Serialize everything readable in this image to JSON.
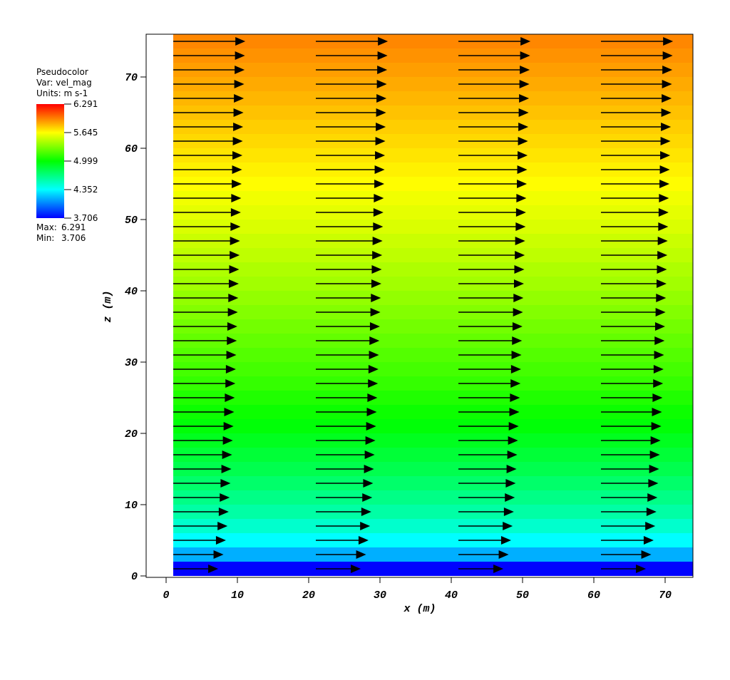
{
  "chart_data": {
    "type": "vector_field",
    "xlabel": "x (m)",
    "ylabel": "z (m)",
    "xlim": [
      -2.8,
      73.9
    ],
    "ylim": [
      -0.2,
      76
    ],
    "xticks": [
      0,
      10,
      20,
      30,
      40,
      50,
      60,
      70
    ],
    "yticks": [
      0,
      10,
      20,
      30,
      40,
      50,
      60,
      70
    ],
    "columns": [
      1,
      21,
      41,
      61
    ],
    "z": [
      1,
      3,
      5,
      7,
      9,
      11,
      13,
      15,
      17,
      19,
      21,
      23,
      25,
      27,
      29,
      31,
      33,
      35,
      37,
      39,
      41,
      43,
      45,
      47,
      49,
      51,
      53,
      55,
      57,
      59,
      61,
      63,
      65,
      67,
      69,
      71,
      73,
      75
    ],
    "values": [
      3.71,
      4.15,
      4.35,
      4.48,
      4.58,
      4.66,
      4.73,
      4.8,
      4.86,
      4.92,
      4.98,
      5.03,
      5.08,
      5.13,
      5.17,
      5.21,
      5.25,
      5.29,
      5.33,
      5.37,
      5.41,
      5.44,
      5.48,
      5.51,
      5.55,
      5.58,
      5.61,
      5.65,
      5.68,
      5.71,
      5.74,
      5.77,
      5.8,
      5.83,
      5.86,
      5.89,
      5.92,
      5.95
    ],
    "arrow_color": "#000000",
    "legend": {
      "title": "Pseudocolor",
      "var": "Var: vel_mag",
      "units": "Units: m s-1",
      "ticks": [
        6.291,
        5.645,
        4.999,
        4.352,
        3.706
      ],
      "max_text": "Max:",
      "max": 6.291,
      "min_text": "Min:",
      "min": 3.706
    }
  }
}
